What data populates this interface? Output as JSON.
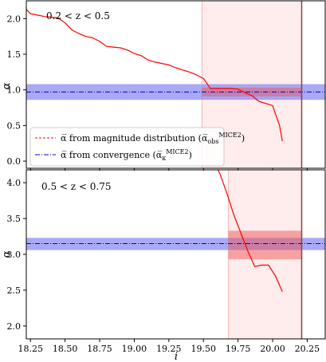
{
  "chart_data": [
    {
      "type": "line",
      "panel": "top",
      "annotation": "0.2 < z < 0.5",
      "ylabel": "α",
      "xlim": [
        18.22,
        20.38
      ],
      "ylim": [
        -0.1,
        2.25
      ],
      "yticks": [
        "0.0",
        "0.5",
        "1.0",
        "1.5",
        "2.0"
      ],
      "grid": false,
      "legend_position": "lower-left",
      "legend": [
        {
          "label": "α̅ from magnitude distribution (α̅_obs^MICE2)",
          "style": "dashed",
          "color": "#ff0000"
        },
        {
          "label": "α̅ from convergence (α̅_κ^MICE2)",
          "style": "dashdot",
          "color": "#0000cc"
        }
      ],
      "series": [
        {
          "name": "α̅ from magnitude distribution (α̅_obs^MICE2)",
          "color": "#ff0000",
          "x": [
            18.22,
            18.25,
            18.3,
            18.35,
            18.4,
            18.45,
            18.5,
            18.55,
            18.6,
            18.65,
            18.7,
            18.75,
            18.8,
            18.85,
            18.9,
            18.95,
            19.0,
            19.05,
            19.1,
            19.15,
            19.2,
            19.25,
            19.3,
            19.35,
            19.4,
            19.45,
            19.5,
            19.55,
            19.6,
            19.65,
            19.7,
            19.75,
            19.8,
            19.85,
            19.9,
            19.95,
            20.0,
            20.05,
            20.07
          ],
          "y": [
            2.13,
            2.07,
            2.05,
            2.03,
            2.02,
            2.01,
            1.94,
            1.84,
            1.79,
            1.75,
            1.73,
            1.68,
            1.61,
            1.6,
            1.59,
            1.56,
            1.51,
            1.48,
            1.42,
            1.39,
            1.37,
            1.35,
            1.31,
            1.28,
            1.25,
            1.21,
            1.16,
            1.02,
            1.02,
            1.02,
            1.02,
            1.01,
            0.96,
            0.92,
            0.84,
            0.81,
            0.78,
            0.5,
            0.28
          ]
        }
      ],
      "reference_line": {
        "value": 0.97,
        "band": [
          0.86,
          1.08
        ],
        "color": "#0000cc"
      },
      "highlight_x": [
        19.49,
        20.21
      ],
      "red_box": {
        "x": [
          19.49,
          20.21
        ],
        "y": [
          0.91,
          1.03
        ]
      },
      "vline_x": 20.21
    },
    {
      "type": "line",
      "panel": "bottom",
      "annotation": "0.5 < z < 0.75",
      "ylabel": "α",
      "xlabel": "i",
      "xlim": [
        18.22,
        20.38
      ],
      "ylim": [
        1.82,
        4.18
      ],
      "xticks": [
        "18.25",
        "18.50",
        "18.75",
        "19.00",
        "19.25",
        "19.50",
        "19.75",
        "20.00",
        "20.25"
      ],
      "yticks": [
        "2.0",
        "2.5",
        "3.0",
        "3.5",
        "4.0"
      ],
      "grid": false,
      "series": [
        {
          "name": "α̅ from magnitude distribution (α̅_obs^MICE2)",
          "color": "#ff0000",
          "x": [
            19.57,
            19.62,
            19.67,
            19.72,
            19.77,
            19.82,
            19.87,
            19.92,
            19.97,
            20.02,
            20.07
          ],
          "y": [
            4.32,
            4.12,
            3.85,
            3.55,
            3.3,
            3.05,
            2.83,
            2.85,
            2.85,
            2.7,
            2.48
          ]
        }
      ],
      "reference_line": {
        "value": 3.15,
        "band": [
          3.06,
          3.23
        ],
        "color": "#0000cc"
      },
      "highlight_x": [
        19.68,
        20.21
      ],
      "red_box": {
        "x": [
          19.68,
          20.21
        ],
        "y": [
          2.93,
          3.33
        ]
      },
      "vline_x": 20.21
    }
  ]
}
